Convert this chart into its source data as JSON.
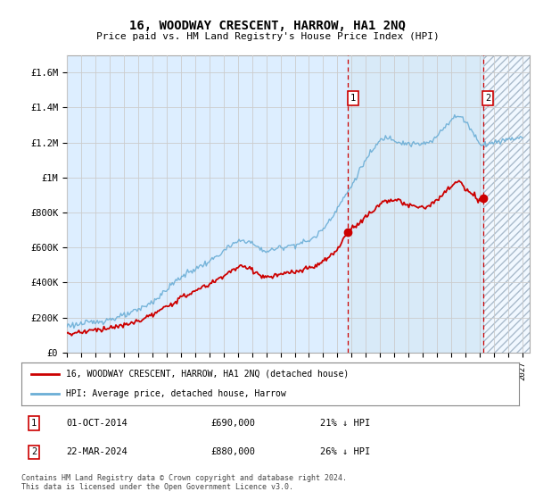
{
  "title": "16, WOODWAY CRESCENT, HARROW, HA1 2NQ",
  "subtitle": "Price paid vs. HM Land Registry's House Price Index (HPI)",
  "yticks": [
    0,
    200000,
    400000,
    600000,
    800000,
    1000000,
    1200000,
    1400000,
    1600000
  ],
  "ytick_labels": [
    "£0",
    "£200K",
    "£400K",
    "£600K",
    "£800K",
    "£1M",
    "£1.2M",
    "£1.4M",
    "£1.6M"
  ],
  "hpi_color": "#6baed6",
  "price_color": "#cc0000",
  "dashed_line_color": "#cc0000",
  "grid_color": "#cccccc",
  "bg_color": "#ddeeff",
  "highlight_color": "#d8eaf8",
  "legend_label_price": "16, WOODWAY CRESCENT, HARROW, HA1 2NQ (detached house)",
  "legend_label_hpi": "HPI: Average price, detached house, Harrow",
  "sale1_date": "01-OCT-2014",
  "sale1_price": "£690,000",
  "sale1_note": "21% ↓ HPI",
  "sale2_date": "22-MAR-2024",
  "sale2_price": "£880,000",
  "sale2_note": "26% ↓ HPI",
  "footer": "Contains HM Land Registry data © Crown copyright and database right 2024.\nThis data is licensed under the Open Government Licence v3.0.",
  "xlim_start": 1995.0,
  "xlim_end": 2027.5,
  "sale1_x": 2014.75,
  "sale1_y": 690000,
  "sale2_x": 2024.22,
  "sale2_y": 880000
}
